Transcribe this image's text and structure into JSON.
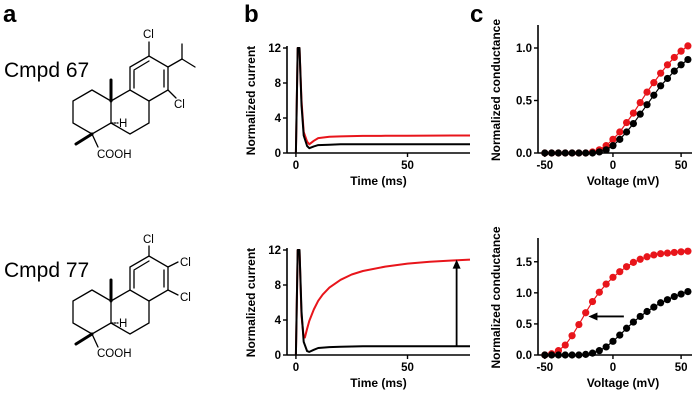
{
  "panels": {
    "a": {
      "letter": "a"
    },
    "b": {
      "letter": "b"
    },
    "c": {
      "letter": "c"
    }
  },
  "compounds": [
    {
      "label": "Cmpd 67",
      "atoms": {
        "cl_top": "Cl",
        "cl_side": "Cl",
        "h": "H",
        "cooh": "COOH"
      }
    },
    {
      "label": "Cmpd 77",
      "atoms": {
        "cl_1": "Cl",
        "cl_2": "Cl",
        "cl_3": "Cl",
        "h": "H",
        "cooh": "COOH"
      }
    }
  ],
  "colors": {
    "control": "#000000",
    "compound": "#e8151b"
  },
  "chart_data": [
    {
      "id": "current_top",
      "type": "line",
      "xlabel": "Time (ms)",
      "ylabel": "Normalized current",
      "xlim": [
        -4,
        78
      ],
      "ylim": [
        0,
        12
      ],
      "xticks": [
        0,
        50
      ],
      "yticks": [
        0,
        4,
        8,
        12
      ],
      "series": [
        {
          "color": "#e8151b",
          "x": [
            0,
            0.8,
            1.6,
            2.5,
            3.5,
            5,
            6,
            8,
            10,
            15,
            20,
            30,
            40,
            50,
            60,
            70,
            78
          ],
          "y": [
            0,
            12,
            12,
            6,
            2.4,
            1.3,
            1.0,
            1.4,
            1.7,
            1.85,
            1.9,
            1.95,
            1.97,
            1.98,
            1.99,
            2.0,
            2.0
          ]
        },
        {
          "color": "#000000",
          "x": [
            0,
            0.8,
            1.6,
            2.5,
            3.5,
            5,
            6,
            8,
            10,
            15,
            20,
            30,
            40,
            50,
            60,
            70,
            78
          ],
          "y": [
            0,
            12,
            12,
            5.5,
            2.0,
            0.8,
            0.55,
            0.75,
            0.9,
            0.95,
            1.0,
            1.0,
            1.0,
            1.0,
            1.0,
            1.0,
            1.0
          ]
        }
      ]
    },
    {
      "id": "current_bottom",
      "type": "line",
      "xlabel": "Time (ms)",
      "ylabel": "Normalized current",
      "xlim": [
        -4,
        78
      ],
      "ylim": [
        0,
        12
      ],
      "xticks": [
        0,
        50
      ],
      "yticks": [
        0,
        4,
        8,
        12
      ],
      "annotations": [
        {
          "type": "arrow",
          "x": 72,
          "y_from": 1.0,
          "y_to": 10.9
        }
      ],
      "series": [
        {
          "color": "#e8151b",
          "x": [
            0,
            0.8,
            1.6,
            2.5,
            3.5,
            4,
            5,
            6,
            8,
            10,
            12,
            15,
            20,
            25,
            30,
            40,
            50,
            60,
            70,
            78
          ],
          "y": [
            0,
            12,
            12,
            4.5,
            2.0,
            2.0,
            3.0,
            3.9,
            5.2,
            6.2,
            6.9,
            7.7,
            8.6,
            9.2,
            9.6,
            10.1,
            10.45,
            10.65,
            10.8,
            10.9
          ]
        },
        {
          "color": "#000000",
          "x": [
            0,
            0.8,
            1.6,
            2.5,
            3.5,
            5,
            6,
            8,
            10,
            15,
            20,
            30,
            40,
            50,
            60,
            70,
            78
          ],
          "y": [
            0,
            12,
            12,
            5.0,
            1.5,
            0.45,
            0.35,
            0.6,
            0.8,
            0.9,
            0.95,
            1.0,
            1.0,
            1.0,
            1.0,
            1.0,
            1.0
          ]
        }
      ]
    },
    {
      "id": "conductance_top",
      "type": "scatter",
      "xlabel": "Voltage (mV)",
      "ylabel": "Normalized conductance",
      "xlim": [
        -55,
        58
      ],
      "ylim": [
        0,
        1.2
      ],
      "xticks": [
        -50,
        0,
        50
      ],
      "yticks": [
        0.0,
        0.5,
        1.0
      ],
      "series": [
        {
          "color": "#e8151b",
          "x": [
            -50,
            -45,
            -40,
            -35,
            -30,
            -25,
            -20,
            -15,
            -10,
            -5,
            0,
            5,
            10,
            15,
            20,
            25,
            30,
            35,
            40,
            45,
            50,
            55
          ],
          "y": [
            0.0,
            0.0,
            0.0,
            0.0,
            0.0,
            0.0,
            0.0,
            0.01,
            0.03,
            0.07,
            0.13,
            0.2,
            0.29,
            0.38,
            0.48,
            0.58,
            0.67,
            0.76,
            0.84,
            0.91,
            0.97,
            1.02
          ]
        },
        {
          "color": "#000000",
          "x": [
            -50,
            -45,
            -40,
            -35,
            -30,
            -25,
            -20,
            -15,
            -10,
            -5,
            0,
            5,
            10,
            15,
            20,
            25,
            30,
            35,
            40,
            45,
            50,
            55
          ],
          "y": [
            0.0,
            0.0,
            0.0,
            0.0,
            0.0,
            0.0,
            0.0,
            0.0,
            0.01,
            0.03,
            0.07,
            0.13,
            0.2,
            0.28,
            0.37,
            0.46,
            0.55,
            0.64,
            0.71,
            0.78,
            0.84,
            0.89
          ]
        }
      ]
    },
    {
      "id": "conductance_bottom",
      "type": "scatter",
      "xlabel": "Voltage (mV)",
      "ylabel": "Normalized conductance",
      "xlim": [
        -55,
        58
      ],
      "ylim": [
        0,
        1.85
      ],
      "xticks": [
        -50,
        0,
        50
      ],
      "yticks": [
        0.0,
        0.5,
        1.0,
        1.5
      ],
      "annotations": [
        {
          "type": "arrow",
          "y": 0.62,
          "x_from": 8,
          "x_to": -18
        }
      ],
      "series": [
        {
          "color": "#e8151b",
          "x": [
            -50,
            -45,
            -40,
            -35,
            -30,
            -25,
            -20,
            -15,
            -10,
            -5,
            0,
            5,
            10,
            15,
            20,
            25,
            30,
            35,
            40,
            45,
            50,
            55
          ],
          "y": [
            0.0,
            0.02,
            0.07,
            0.16,
            0.31,
            0.49,
            0.68,
            0.86,
            1.01,
            1.14,
            1.25,
            1.34,
            1.42,
            1.49,
            1.54,
            1.58,
            1.61,
            1.63,
            1.64,
            1.65,
            1.66,
            1.67
          ]
        },
        {
          "color": "#000000",
          "x": [
            -50,
            -45,
            -40,
            -35,
            -30,
            -25,
            -20,
            -15,
            -10,
            -5,
            0,
            5,
            10,
            15,
            20,
            25,
            30,
            35,
            40,
            45,
            50,
            55
          ],
          "y": [
            0.0,
            0.0,
            0.0,
            0.0,
            0.0,
            0.0,
            0.01,
            0.03,
            0.07,
            0.13,
            0.22,
            0.32,
            0.43,
            0.53,
            0.62,
            0.7,
            0.77,
            0.84,
            0.89,
            0.94,
            0.98,
            1.02
          ]
        }
      ]
    }
  ]
}
